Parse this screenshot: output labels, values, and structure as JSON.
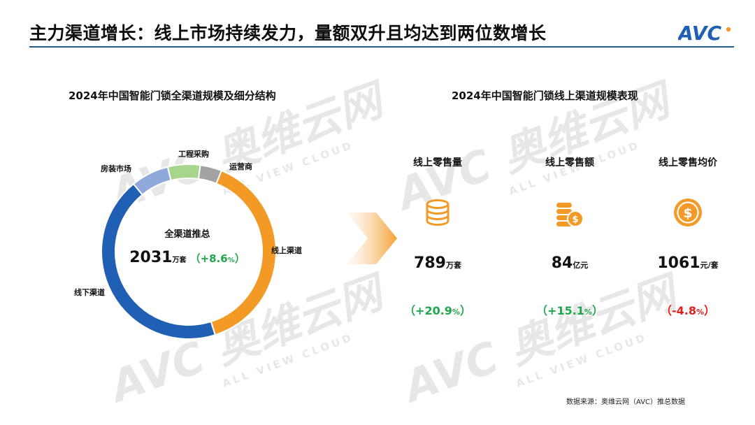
{
  "header": {
    "title": "主力渠道增长：线上市场持续发力，量额双升且均达到两位数增长",
    "logo_text": "AVC"
  },
  "watermark": {
    "main": "AVC 奥维云网",
    "sub": "ALL VIEW CLOUD"
  },
  "left": {
    "title": "2024年中国智能门锁全渠道规模及细分结构",
    "center_label": "全渠道推总",
    "center_value": "2031",
    "center_unit": "万套",
    "center_change": "（+8.6",
    "center_change_pct": "%",
    "center_change_close": "）"
  },
  "right": {
    "title": "2024年中国智能门锁线上渠道规模表现",
    "metrics": [
      {
        "label": "线上零售量",
        "icon": "database-stack-icon",
        "value": "789",
        "unit": "万套",
        "change": "（+20.9",
        "pct": "%",
        "close": "）",
        "change_color": "#1fa84a"
      },
      {
        "label": "线上零售额",
        "icon": "coins-stack-icon",
        "value": "84",
        "unit": "亿元",
        "change": "（+15.1",
        "pct": "%",
        "close": "）",
        "change_color": "#1fa84a"
      },
      {
        "label": "线上零售均价",
        "icon": "dollar-coin-icon",
        "value": "1061",
        "unit": "元/套",
        "change": "（-4.8",
        "pct": "%",
        "close": "）",
        "change_color": "#e02020"
      }
    ]
  },
  "chart_data": {
    "type": "pie",
    "title": "2024年中国智能门锁全渠道规模及细分结构",
    "categories": [
      "线上渠道",
      "线下渠道",
      "房装市场",
      "工程采购",
      "运营商"
    ],
    "values": [
      39,
      44,
      7,
      6,
      4
    ],
    "colors": [
      "#f39a26",
      "#1f5fb4",
      "#8fa9dc",
      "#a6d58c",
      "#a3a3a3"
    ]
  },
  "source": "数据来源：奥维云网（AVC）推总数据",
  "colors": {
    "accent": "#1f5e8c",
    "up": "#1fa84a",
    "down": "#e02020",
    "icon": "#f39a26"
  }
}
